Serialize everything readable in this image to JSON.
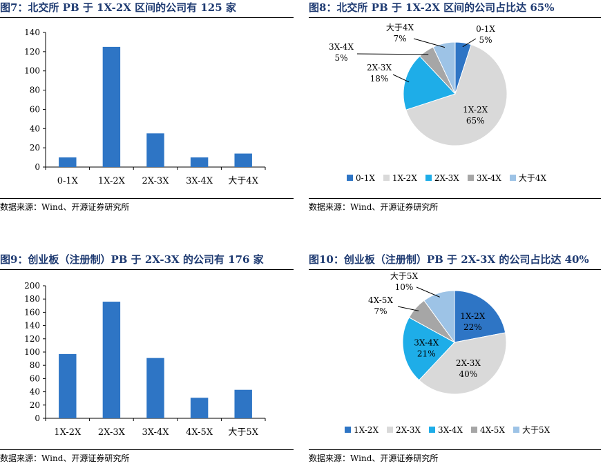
{
  "panels": [
    {
      "title": "图7：北交所 PB 于 1X-2X 区间的公司有 125 家",
      "source": "数据来源：Wind、开源证券研究所"
    },
    {
      "title": "图8：北交所 PB 于 1X-2X 区间的公司占比达 65%",
      "source": "数据来源：Wind、开源证券研究所"
    },
    {
      "title": "图9：创业板（注册制）PB 于 2X-3X 的公司有 176 家",
      "source": "数据来源：Wind、开源证券研究所"
    },
    {
      "title": "图10：创业板（注册制）PB 于 2X-3X 的公司占比达 40%",
      "source": "数据来源：Wind、开源证券研究所"
    }
  ],
  "chart_data": [
    {
      "type": "bar",
      "categories": [
        "0-1X",
        "1X-2X",
        "2X-3X",
        "3X-4X",
        "大于4X"
      ],
      "values": [
        10,
        125,
        35,
        10,
        14
      ],
      "ylim": [
        0,
        140
      ],
      "yticks": [
        0,
        20,
        40,
        60,
        80,
        100,
        120,
        140
      ],
      "color": "#2E75C5",
      "grid": false
    },
    {
      "type": "pie",
      "labels": [
        "0-1X",
        "1X-2X",
        "2X-3X",
        "3X-4X",
        "大于4X"
      ],
      "values": [
        5,
        65,
        18,
        5,
        7
      ],
      "slice_labels": [
        "5%",
        "65%",
        "18%",
        "5%",
        "7%"
      ],
      "colors": [
        "#2E75C5",
        "#D9D9D9",
        "#1EADE8",
        "#A6A6A6",
        "#9DC3E6"
      ],
      "legend": "bottom"
    },
    {
      "type": "bar",
      "categories": [
        "1X-2X",
        "2X-3X",
        "3X-4X",
        "4X-5X",
        "大于5X"
      ],
      "values": [
        97,
        176,
        91,
        31,
        43
      ],
      "ylim": [
        0,
        200
      ],
      "yticks": [
        0,
        20,
        40,
        60,
        80,
        100,
        120,
        140,
        160,
        180,
        200
      ],
      "color": "#2E75C5",
      "grid": false
    },
    {
      "type": "pie",
      "labels": [
        "1X-2X",
        "2X-3X",
        "3X-4X",
        "4X-5X",
        "大于5X"
      ],
      "values": [
        22,
        40,
        21,
        7,
        10
      ],
      "slice_labels": [
        "22%",
        "40%",
        "21%",
        "7%",
        "10%"
      ],
      "colors": [
        "#2E75C5",
        "#D9D9D9",
        "#1EADE8",
        "#A6A6A6",
        "#9DC3E6"
      ],
      "legend": "bottom"
    }
  ]
}
